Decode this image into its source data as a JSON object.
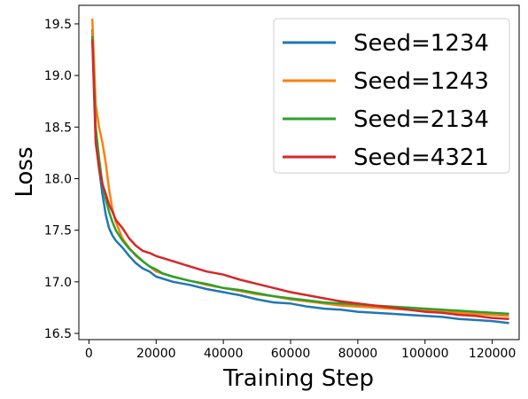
{
  "chart_data": {
    "type": "line",
    "xlabel": "Training Step",
    "ylabel": "Loss",
    "xlim": [
      -3000,
      128000
    ],
    "ylim": [
      16.44,
      19.68
    ],
    "xticks": [
      0,
      20000,
      40000,
      60000,
      80000,
      100000,
      120000
    ],
    "yticks": [
      16.5,
      17.0,
      17.5,
      18.0,
      18.5,
      19.0,
      19.5
    ],
    "legend_position": "top-right",
    "x": [
      1000,
      2000,
      3000,
      4000,
      5000,
      6000,
      7000,
      8000,
      10000,
      12000,
      14000,
      16000,
      18000,
      20000,
      22000,
      25000,
      30000,
      35000,
      40000,
      45000,
      50000,
      55000,
      60000,
      65000,
      70000,
      75000,
      80000,
      85000,
      90000,
      95000,
      100000,
      105000,
      110000,
      115000,
      120000,
      125000
    ],
    "series": [
      {
        "name": "Seed=1234",
        "color": "#1f77b4",
        "values": [
          19.45,
          18.4,
          18.1,
          17.85,
          17.65,
          17.52,
          17.45,
          17.4,
          17.33,
          17.25,
          17.18,
          17.13,
          17.1,
          17.05,
          17.03,
          17.0,
          16.97,
          16.93,
          16.9,
          16.87,
          16.83,
          16.8,
          16.79,
          16.76,
          16.74,
          16.73,
          16.71,
          16.7,
          16.69,
          16.68,
          16.67,
          16.66,
          16.64,
          16.63,
          16.62,
          16.6
        ]
      },
      {
        "name": "Seed=1243",
        "color": "#ff7f0e",
        "values": [
          19.55,
          18.72,
          18.5,
          18.35,
          18.15,
          17.9,
          17.7,
          17.58,
          17.42,
          17.33,
          17.25,
          17.2,
          17.15,
          17.1,
          17.08,
          17.05,
          17.01,
          16.97,
          16.94,
          16.91,
          16.88,
          16.86,
          16.83,
          16.81,
          16.79,
          16.77,
          16.76,
          16.75,
          16.74,
          16.73,
          16.72,
          16.71,
          16.7,
          16.69,
          16.68,
          16.67
        ]
      },
      {
        "name": "Seed=2134",
        "color": "#2ca02c",
        "values": [
          19.38,
          18.5,
          18.2,
          17.95,
          17.8,
          17.68,
          17.58,
          17.5,
          17.4,
          17.32,
          17.26,
          17.2,
          17.15,
          17.12,
          17.08,
          17.05,
          17.01,
          16.98,
          16.94,
          16.92,
          16.89,
          16.86,
          16.84,
          16.82,
          16.8,
          16.79,
          16.78,
          16.77,
          16.76,
          16.75,
          16.74,
          16.73,
          16.72,
          16.71,
          16.7,
          16.69
        ]
      },
      {
        "name": "Seed=4321",
        "color": "#d62728",
        "values": [
          19.35,
          18.35,
          18.1,
          17.95,
          17.85,
          17.75,
          17.68,
          17.6,
          17.52,
          17.42,
          17.35,
          17.3,
          17.28,
          17.25,
          17.23,
          17.2,
          17.15,
          17.1,
          17.07,
          17.02,
          16.98,
          16.94,
          16.9,
          16.87,
          16.84,
          16.81,
          16.79,
          16.77,
          16.75,
          16.73,
          16.71,
          16.7,
          16.68,
          16.67,
          16.65,
          16.64
        ]
      }
    ]
  }
}
